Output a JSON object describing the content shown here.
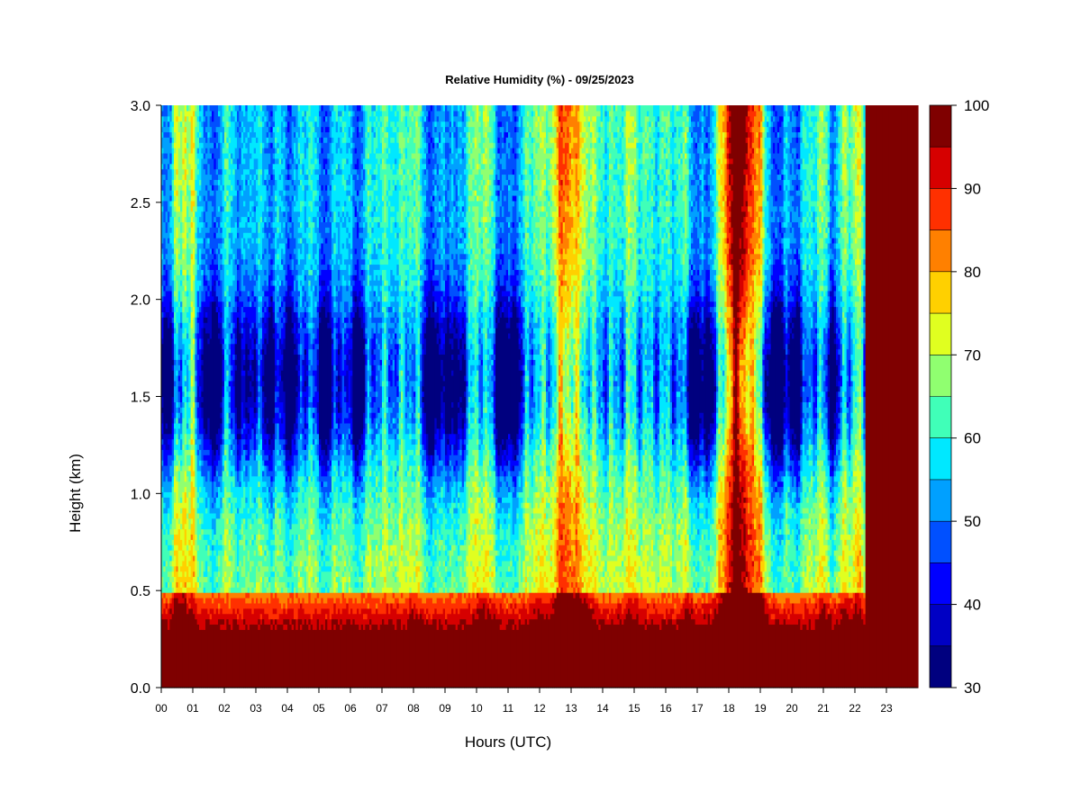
{
  "chart_data": {
    "type": "heatmap",
    "title": "Relative Humidity (%) - 09/25/2023",
    "xlabel": "Hours (UTC)",
    "ylabel": "Height (km)",
    "x_range": [
      0,
      24
    ],
    "y_range": [
      0,
      3.0
    ],
    "x_tick_labels": [
      "00",
      "01",
      "02",
      "03",
      "04",
      "05",
      "06",
      "07",
      "08",
      "09",
      "10",
      "11",
      "12",
      "13",
      "14",
      "15",
      "16",
      "17",
      "18",
      "19",
      "20",
      "21",
      "22",
      "23"
    ],
    "y_tick_labels": [
      "0.0",
      "0.5",
      "1.0",
      "1.5",
      "2.0",
      "2.5",
      "3.0"
    ],
    "y_tick_values": [
      0,
      0.5,
      1.0,
      1.5,
      2.0,
      2.5,
      3.0
    ],
    "colorbar": {
      "range": [
        30,
        100
      ],
      "step": 5,
      "tick_labels": [
        "30",
        "40",
        "50",
        "60",
        "70",
        "80",
        "90",
        "100"
      ],
      "tick_values": [
        30,
        40,
        50,
        60,
        70,
        80,
        90,
        100
      ],
      "colors": [
        "#00007f",
        "#0000c4",
        "#0000ff",
        "#0050ff",
        "#00a0ff",
        "#00e8ff",
        "#40ffb8",
        "#90ff70",
        "#e0ff20",
        "#ffd000",
        "#ff8000",
        "#ff3000",
        "#d60000",
        "#7f0000"
      ]
    },
    "grid": false,
    "legend": "colorbar-right"
  }
}
